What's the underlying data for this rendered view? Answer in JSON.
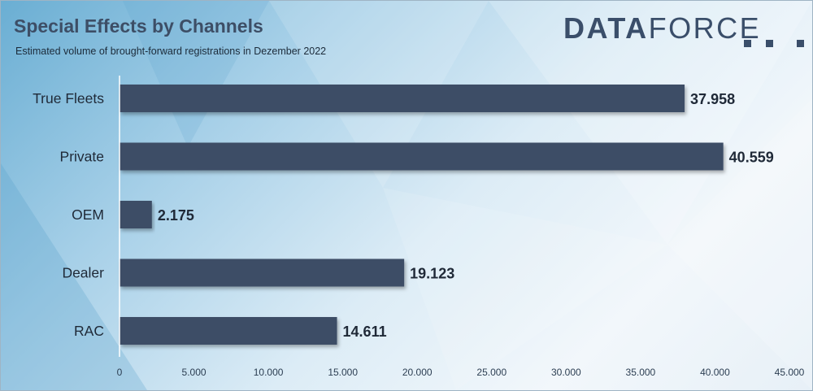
{
  "brand": {
    "part1": "DATA",
    "part2": "FORCE",
    "color": "#3a4e6a"
  },
  "colors": {
    "bar": "#3d4e66",
    "axis": "#ffffff"
  },
  "chart_data": {
    "type": "bar",
    "orientation": "horizontal",
    "title": "Special Effects by Channels",
    "subtitle": "Estimated volume of brought-forward registrations in Dezember 2022",
    "categories": [
      "True Fleets",
      "Private",
      "OEM",
      "Dealer",
      "RAC"
    ],
    "values": [
      37958,
      40559,
      2175,
      19123,
      14611
    ],
    "value_labels": [
      "37.958",
      "40.559",
      "2.175",
      "19.123",
      "14.611"
    ],
    "xlim": [
      0,
      45000
    ],
    "xticks": [
      0,
      5000,
      10000,
      15000,
      20000,
      25000,
      30000,
      35000,
      40000,
      45000
    ],
    "xtick_labels": [
      "0",
      "5.000",
      "10.000",
      "15.000",
      "20.000",
      "25.000",
      "30.000",
      "35.000",
      "40.000",
      "45.000"
    ],
    "grid": false,
    "legend": "none"
  }
}
